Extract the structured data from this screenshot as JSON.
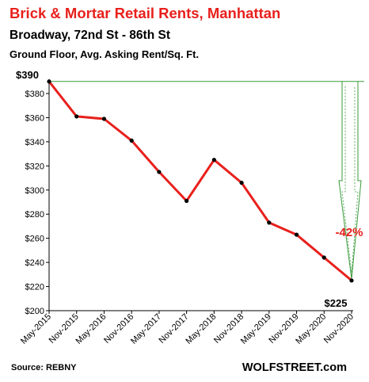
{
  "chart_data": {
    "type": "line",
    "title": "Brick & Mortar Retail Rents, Manhattan",
    "subtitle": "Broadway, 72nd St - 86th St",
    "subtitle2": "Ground Floor, Avg. Asking Rent/Sq. Ft.",
    "categories": [
      "May-2015",
      "Nov-2015",
      "May-2016",
      "Nov-2016",
      "May-2017",
      "Nov-2017",
      "May-2018",
      "Nov-2018",
      "May-2019",
      "Nov-2019",
      "May-2020",
      "Nov-2020"
    ],
    "series": [
      {
        "values": [
          390,
          361,
          359,
          341,
          315,
          291,
          325,
          306,
          273,
          263,
          244,
          225
        ]
      }
    ],
    "ylim": [
      200,
      390
    ],
    "yticks": [
      "$200",
      "$220",
      "$240",
      "$260",
      "$280",
      "$300",
      "$320",
      "$340",
      "$360",
      "$380"
    ],
    "grid": false,
    "annotations": {
      "start_label": "$390",
      "end_label": "$225",
      "change_label": "-42%"
    },
    "source": "Source: REBNY",
    "brand": "WOLFSTREET.com",
    "colors": {
      "title": "#e8201c",
      "line": "#e8201c",
      "marker": "#000000",
      "arrow": "#3a9a3a",
      "change": "#e8201c"
    }
  }
}
